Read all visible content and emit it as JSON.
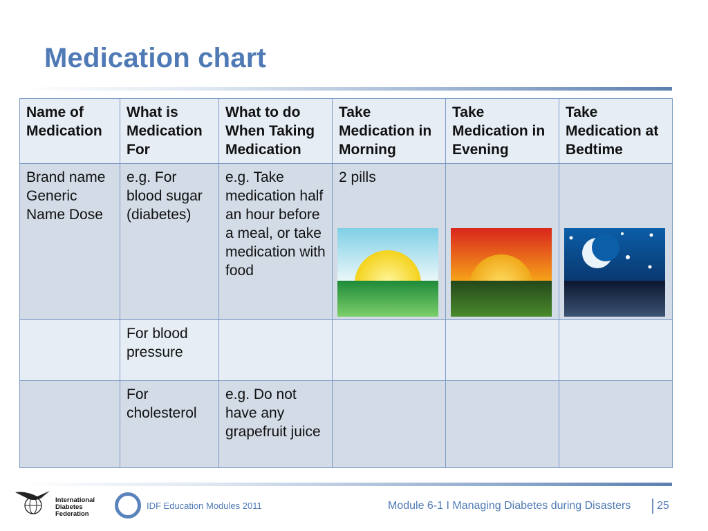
{
  "title": "Medication chart",
  "table": {
    "headers": [
      "Name of Medication",
      "What is Medication For",
      "What to do When Taking Medication",
      "Take Medication in Morning",
      "Take Medication in Evening",
      "Take Medication at Bedtime"
    ],
    "rows": [
      [
        "Brand name Generic Name Dose",
        "e.g. For blood sugar (diabetes)",
        "e.g. Take medication half an hour before a meal, or take medication with food",
        "2 pills",
        "",
        ""
      ],
      [
        "",
        "For blood pressure",
        "",
        "",
        "",
        ""
      ],
      [
        "",
        "For cholesterol",
        "e.g. Do not have any grapefruit juice",
        "",
        "",
        ""
      ]
    ],
    "images": [
      "sunrise-icon",
      "sunset-icon",
      "night-moon-icon"
    ]
  },
  "footer": {
    "org_name_lines": [
      "International",
      "Diabetes",
      "Federation"
    ],
    "education": "IDF Education Modules 2011",
    "module": "Module 6-1 I Managing Diabetes during Disasters",
    "page_number": "25"
  },
  "colors": {
    "title": "#4f7ab5",
    "header_bg": "#e6edf5",
    "row_dark_bg": "#d2dbe6",
    "border": "#7c9ac6"
  }
}
